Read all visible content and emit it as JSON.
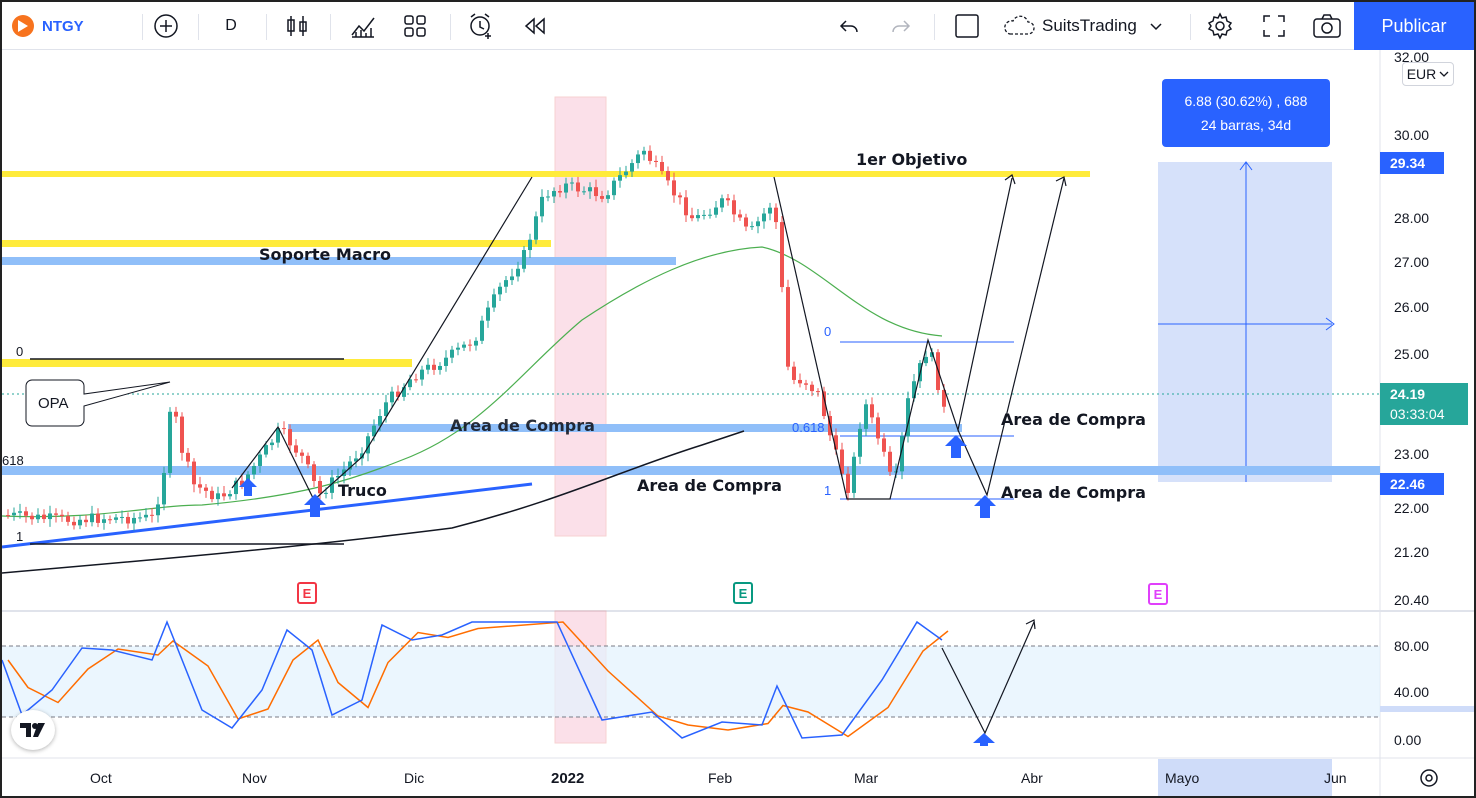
{
  "toolbar": {
    "symbol": "NTGY",
    "interval": "D",
    "account": "SuitsTrading",
    "publish_label": "Publicar"
  },
  "price_axis": {
    "currency": "EUR",
    "labels": [
      "32.00",
      "30.00",
      "28.00",
      "27.00",
      "26.00",
      "25.00",
      "23.00",
      "22.00",
      "21.20",
      "20.40"
    ],
    "badges": [
      {
        "value": "29.34",
        "color": "#2962ff"
      },
      {
        "value": "24.19",
        "sub": "03:33:04",
        "color": "#26a69a"
      },
      {
        "value": "22.46",
        "color": "#2962ff"
      }
    ]
  },
  "oscillator_axis": {
    "labels": [
      "80.00",
      "40.00",
      "0.00"
    ]
  },
  "time_axis": {
    "labels": [
      "Oct",
      "Nov",
      "Dic",
      "2022",
      "Feb",
      "Mar",
      "Abr",
      "Mayo",
      "Jun"
    ]
  },
  "measure": {
    "line1": "6.88 (30.62%) , 688",
    "line2": "24 barras, 34d"
  },
  "annotations": {
    "objetivo": "1er Objetivo",
    "soporte_macro": "Soporte Macro",
    "opa": "OPA",
    "truco": "Truco",
    "area_compra_1": "Area de Compra",
    "area_compra_2": "Area de Compra",
    "area_compra_3": "Area de Compra",
    "area_compra_hidden": "Area de Compra",
    "fib_0_left": "0",
    "fib_618_left": "618",
    "fib_1_left": "1",
    "fib_0_right": "0",
    "fib_618_right": "0.618",
    "fib_1_right": "1"
  },
  "earnings_markers": [
    {
      "label": "E",
      "color": "#f23645"
    },
    {
      "label": "E",
      "color": "#089981"
    },
    {
      "label": "E",
      "color": "#e040fb"
    }
  ],
  "colors": {
    "accent": "#2962ff",
    "yellow_line": "#ffeb3b",
    "blue_zone": "#90bff9",
    "up_candle": "#26a69a",
    "down_candle": "#ef5350",
    "ma_green": "#4caf50",
    "stoch_k": "#2962ff",
    "stoch_d": "#ff6d00"
  }
}
